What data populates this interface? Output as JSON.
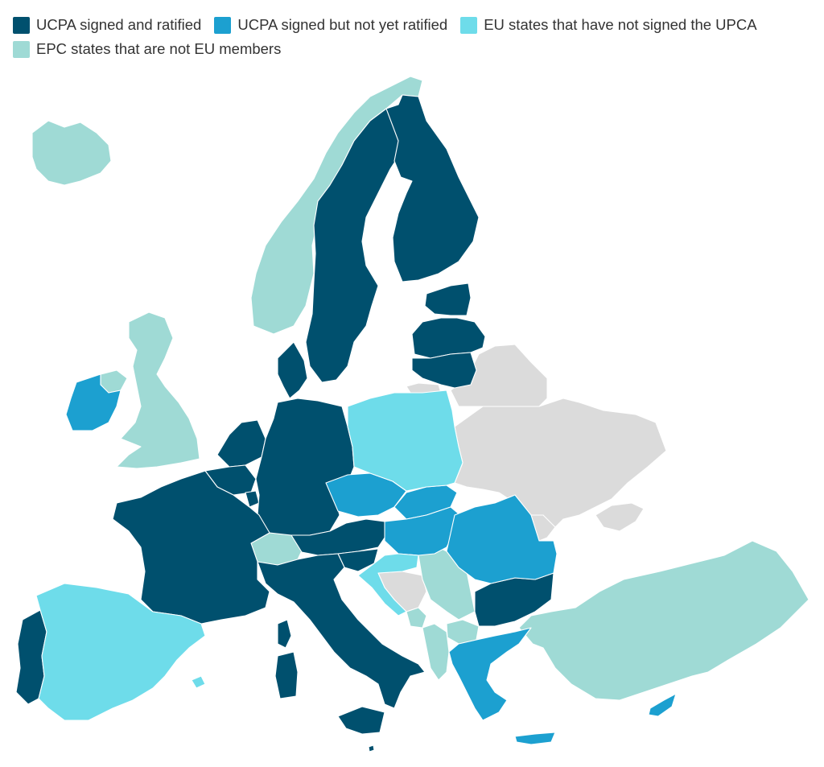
{
  "legend": [
    {
      "id": "ratified",
      "label": "UCPA signed and ratified",
      "color": "#00506E"
    },
    {
      "id": "signed",
      "label": "UCPA signed but not yet ratified",
      "color": "#1CA0D0"
    },
    {
      "id": "eu_not_signed",
      "label": "EU states that have not signed the UPCA",
      "color": "#6EDCEA"
    },
    {
      "id": "epc_non_eu",
      "label": "EPC states that are not EU members",
      "color": "#9FDAD5"
    }
  ],
  "other_color": "#DBDBDB",
  "regions": [
    {
      "name": "iceland",
      "category": "epc_non_eu"
    },
    {
      "name": "norway",
      "category": "epc_non_eu"
    },
    {
      "name": "sweden",
      "category": "ratified"
    },
    {
      "name": "finland",
      "category": "ratified"
    },
    {
      "name": "estonia",
      "category": "ratified"
    },
    {
      "name": "latvia",
      "category": "ratified"
    },
    {
      "name": "lithuania",
      "category": "ratified"
    },
    {
      "name": "denmark",
      "category": "ratified"
    },
    {
      "name": "united-kingdom",
      "category": "epc_non_eu"
    },
    {
      "name": "northern-ireland",
      "category": "epc_non_eu"
    },
    {
      "name": "ireland",
      "category": "signed"
    },
    {
      "name": "netherlands",
      "category": "ratified"
    },
    {
      "name": "belgium",
      "category": "ratified"
    },
    {
      "name": "luxembourg",
      "category": "ratified"
    },
    {
      "name": "germany",
      "category": "ratified"
    },
    {
      "name": "france",
      "category": "ratified"
    },
    {
      "name": "corsica",
      "category": "ratified"
    },
    {
      "name": "switzerland",
      "category": "epc_non_eu"
    },
    {
      "name": "austria",
      "category": "ratified"
    },
    {
      "name": "slovenia",
      "category": "ratified"
    },
    {
      "name": "italy",
      "category": "ratified"
    },
    {
      "name": "sardinia",
      "category": "ratified"
    },
    {
      "name": "sicily",
      "category": "ratified"
    },
    {
      "name": "portugal",
      "category": "ratified"
    },
    {
      "name": "spain",
      "category": "eu_not_signed"
    },
    {
      "name": "balearic-islands",
      "category": "eu_not_signed"
    },
    {
      "name": "poland",
      "category": "eu_not_signed"
    },
    {
      "name": "croatia",
      "category": "eu_not_signed"
    },
    {
      "name": "czech-republic",
      "category": "signed"
    },
    {
      "name": "slovakia",
      "category": "signed"
    },
    {
      "name": "hungary",
      "category": "signed"
    },
    {
      "name": "romania",
      "category": "signed"
    },
    {
      "name": "greece",
      "category": "signed"
    },
    {
      "name": "crete",
      "category": "signed"
    },
    {
      "name": "cyprus",
      "category": "signed"
    },
    {
      "name": "bulgaria",
      "category": "ratified"
    },
    {
      "name": "malta",
      "category": "ratified"
    },
    {
      "name": "serbia",
      "category": "epc_non_eu"
    },
    {
      "name": "montenegro",
      "category": "epc_non_eu"
    },
    {
      "name": "north-macedonia",
      "category": "epc_non_eu"
    },
    {
      "name": "albania",
      "category": "epc_non_eu"
    },
    {
      "name": "turkey",
      "category": "epc_non_eu"
    },
    {
      "name": "bosnia-herzegovina",
      "category": "other"
    },
    {
      "name": "belarus",
      "category": "other"
    },
    {
      "name": "ukraine",
      "category": "other"
    },
    {
      "name": "crimea",
      "category": "other"
    },
    {
      "name": "moldova",
      "category": "other"
    },
    {
      "name": "russia-kaliningrad",
      "category": "other"
    }
  ]
}
